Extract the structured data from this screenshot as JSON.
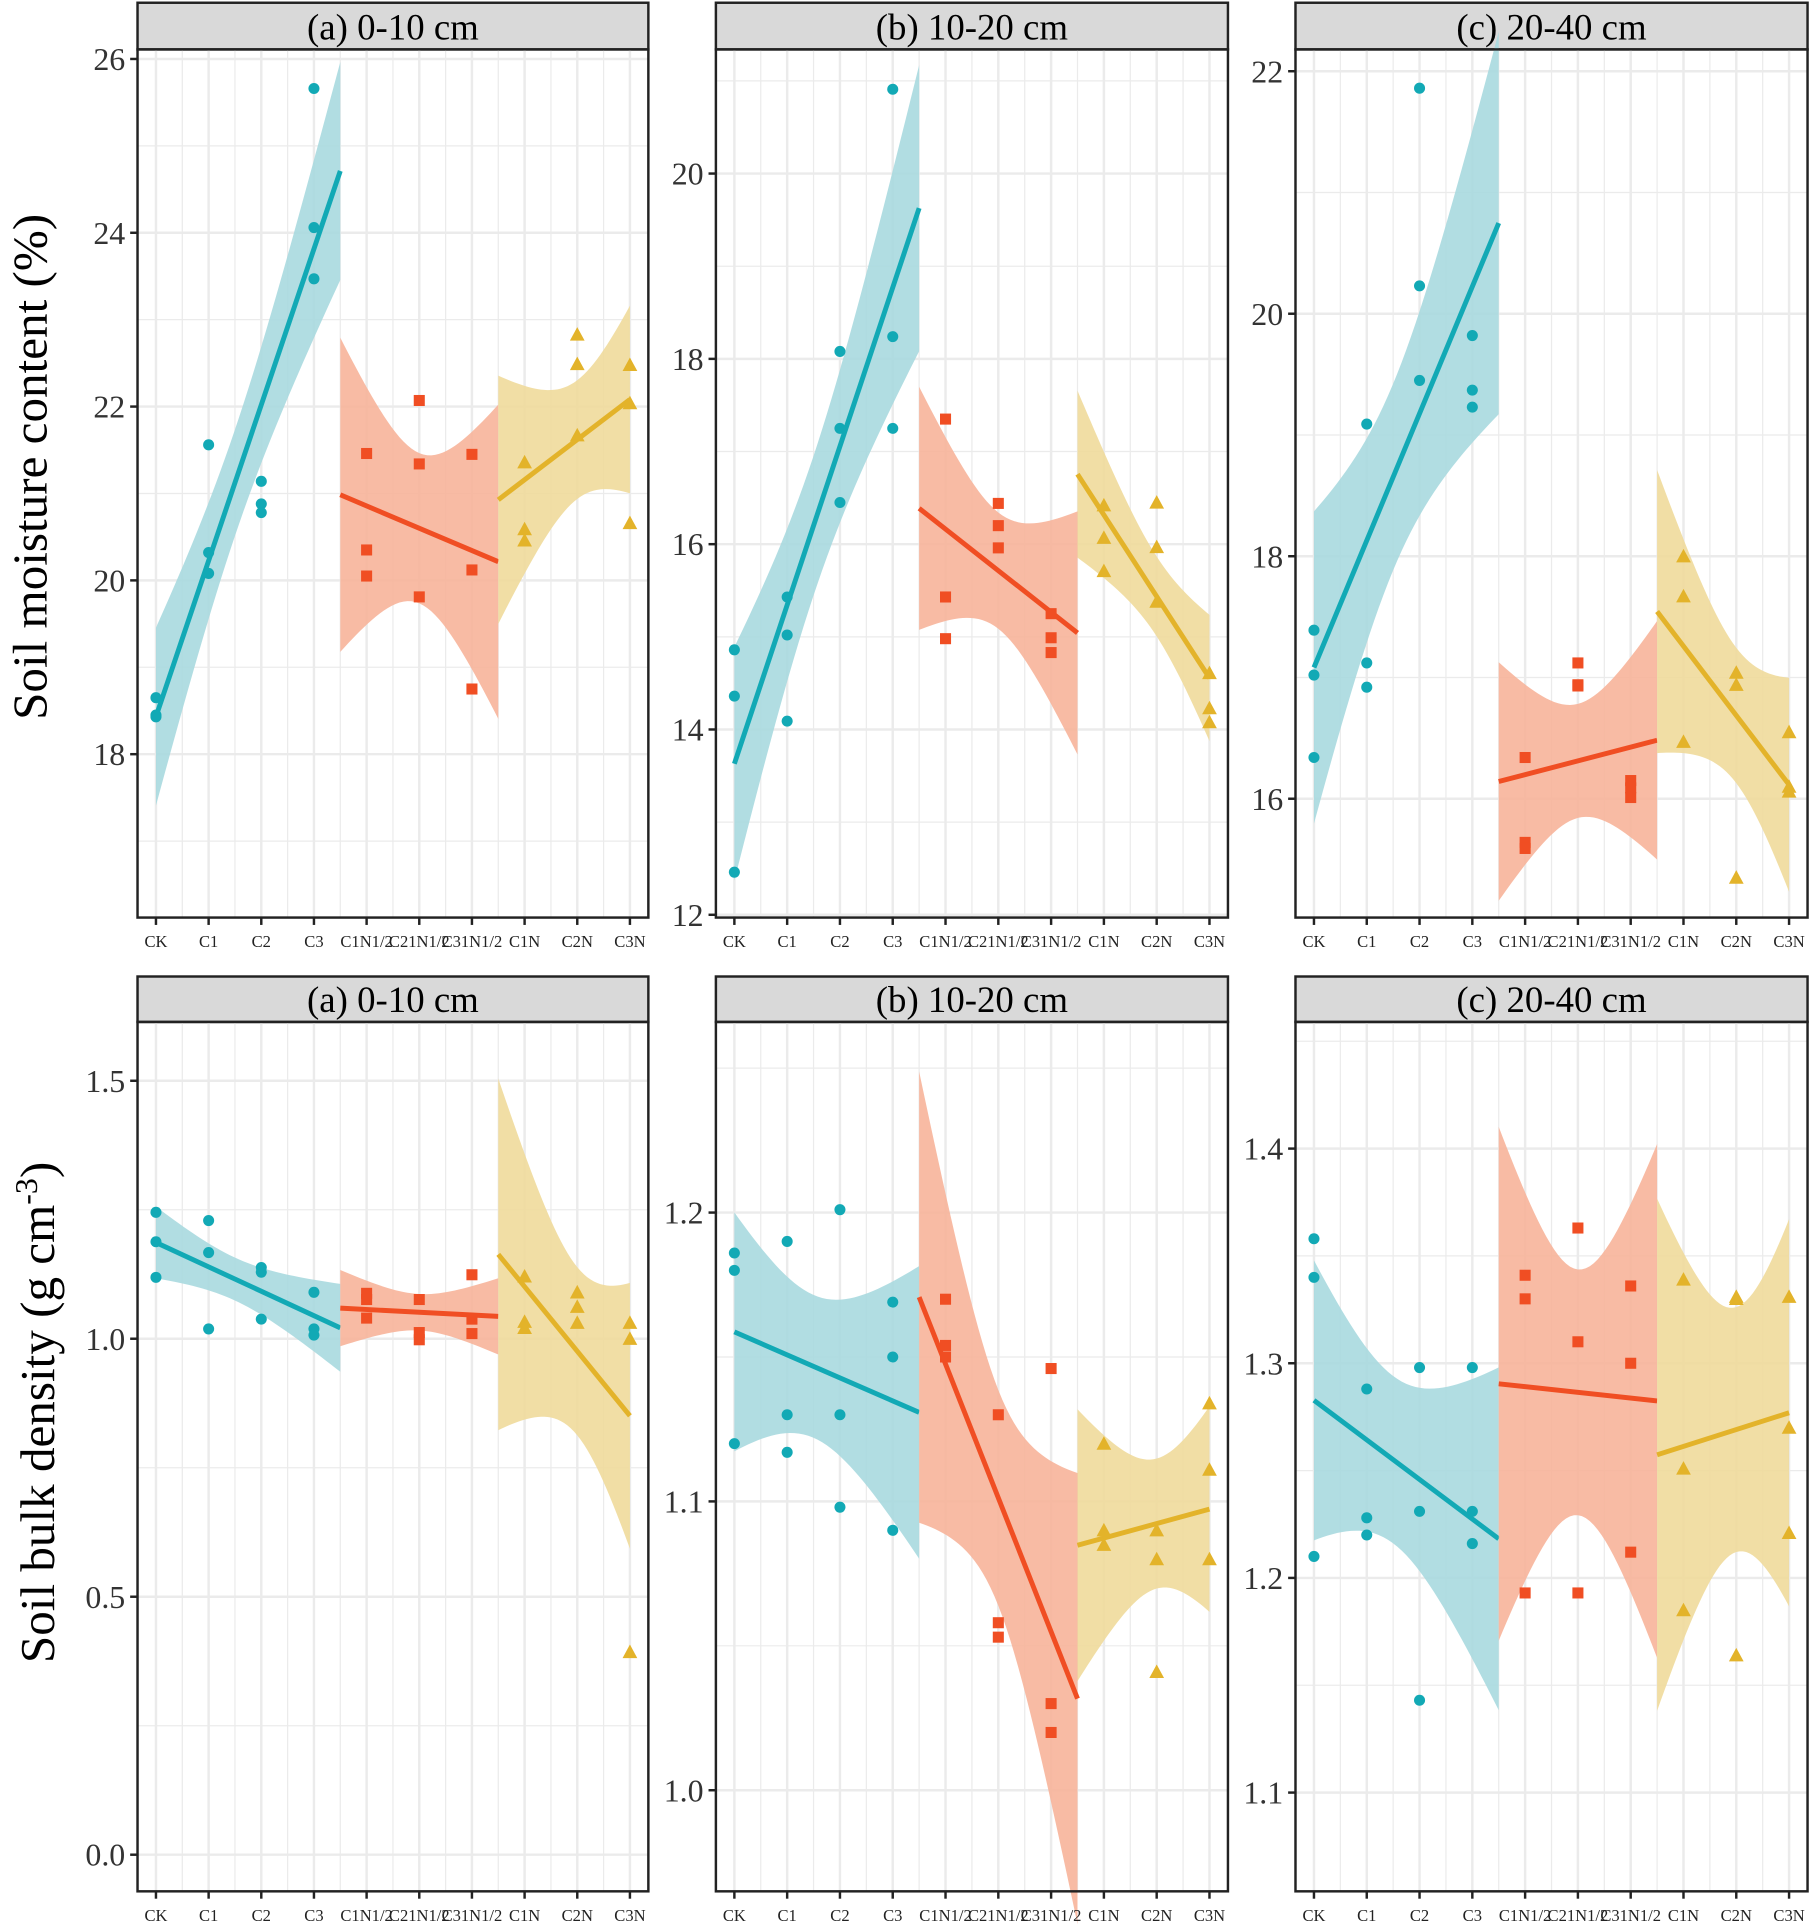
{
  "colors": {
    "teal": "#12a9b5",
    "teal_band": "#a9d9df",
    "orange": "#f04e23",
    "orange_band": "#f7b49a",
    "yellow": "#e3b32a",
    "yellow_band": "#f0da9b",
    "strip": "#d9d9d9",
    "grid": "#ebebeb"
  },
  "row_labels": {
    "moisture": "Soil moisture content (%)",
    "density_prefix": "Soil bulk density (g cm",
    "density_exp": "-3",
    "density_suffix": ")"
  },
  "categories": [
    "CK",
    "C1",
    "C2",
    "C3",
    "C1N1/2",
    "C21N1/2",
    "C31N1/2",
    "C1N",
    "C2N",
    "C3N"
  ],
  "chart_data": [
    {
      "type": "scatter",
      "title": "(a) 0-10 cm",
      "ylabel": "Soil moisture content (%)",
      "ylim": [
        16.12,
        26.11
      ],
      "yticks": [
        "18",
        "20",
        "22",
        "24",
        "26"
      ],
      "grid": true,
      "fit": "linear with 95% CI per group",
      "groups": [
        {
          "categories": [
            "CK",
            "C1",
            "C2",
            "C3"
          ],
          "marker": "circle",
          "values": [
            [
              18.65,
              18.45,
              18.43
            ],
            [
              21.56,
              20.32,
              20.08
            ],
            [
              21.14,
              20.88,
              20.78
            ],
            [
              25.66,
              24.06,
              23.47
            ]
          ]
        },
        {
          "categories": [
            "C1N1/2",
            "C21N1/2",
            "C31N1/2"
          ],
          "marker": "square",
          "values": [
            [
              21.46,
              20.35,
              20.05
            ],
            [
              22.07,
              21.34,
              19.81
            ],
            [
              21.45,
              20.12,
              18.75
            ]
          ]
        },
        {
          "categories": [
            "C1N",
            "C2N",
            "C3N"
          ],
          "marker": "triangle",
          "values": [
            [
              21.36,
              20.59,
              20.46
            ],
            [
              22.83,
              22.49,
              21.67
            ],
            [
              22.48,
              22.04,
              20.66
            ]
          ]
        }
      ]
    },
    {
      "type": "scatter",
      "title": "(b) 10-20 cm",
      "ylim": [
        11.97,
        21.34
      ],
      "yticks": [
        "12",
        "14",
        "16",
        "18",
        "20"
      ],
      "grid": true,
      "groups": [
        {
          "categories": [
            "CK",
            "C1",
            "C2",
            "C3"
          ],
          "marker": "circle",
          "values": [
            [
              14.86,
              14.36,
              12.46
            ],
            [
              15.43,
              15.02,
              14.09
            ],
            [
              18.08,
              17.25,
              16.45
            ],
            [
              20.91,
              18.24,
              17.25
            ]
          ]
        },
        {
          "categories": [
            "C1N1/2",
            "C21N1/2",
            "C31N1/2"
          ],
          "marker": "square",
          "values": [
            [
              17.35,
              15.43,
              14.98
            ],
            [
              16.44,
              16.2,
              15.96
            ],
            [
              15.25,
              14.99,
              14.83
            ]
          ]
        },
        {
          "categories": [
            "C1N",
            "C2N",
            "C3N"
          ],
          "marker": "triangle",
          "values": [
            [
              16.42,
              16.07,
              15.71
            ],
            [
              16.45,
              15.97,
              15.38
            ],
            [
              14.61,
              14.23,
              14.08
            ]
          ]
        }
      ]
    },
    {
      "type": "scatter",
      "title": "(c) 20-40 cm",
      "ylim": [
        15.02,
        22.18
      ],
      "yticks": [
        "16",
        "18",
        "20",
        "22"
      ],
      "grid": true,
      "groups": [
        {
          "categories": [
            "CK",
            "C1",
            "C2",
            "C3"
          ],
          "marker": "circle",
          "values": [
            [
              17.39,
              17.02,
              16.34
            ],
            [
              19.09,
              17.12,
              16.92
            ],
            [
              21.86,
              20.23,
              19.45
            ],
            [
              19.82,
              19.37,
              19.23
            ]
          ]
        },
        {
          "categories": [
            "C1N1/2",
            "C21N1/2",
            "C31N1/2"
          ],
          "marker": "square",
          "values": [
            [
              16.34,
              15.64,
              15.59
            ],
            [
              17.12,
              16.94,
              16.93
            ],
            [
              16.15,
              16.09,
              16.01
            ]
          ]
        },
        {
          "categories": [
            "C1N",
            "C2N",
            "C3N"
          ],
          "marker": "triangle",
          "values": [
            [
              18.0,
              17.67,
              16.47
            ],
            [
              17.04,
              16.94,
              15.35
            ],
            [
              16.55,
              16.06,
              16.1
            ]
          ]
        }
      ]
    },
    {
      "type": "scatter",
      "title": "(a) 0-10 cm",
      "ylabel": "Soil bulk density (g cm-3)",
      "ylim": [
        -0.071,
        1.614
      ],
      "yticks": [
        "0.0",
        "0.5",
        "1.0",
        "1.5"
      ],
      "grid": true,
      "groups": [
        {
          "categories": [
            "CK",
            "C1",
            "C2",
            "C3"
          ],
          "marker": "circle",
          "values": [
            [
              1.245,
              1.188,
              1.119
            ],
            [
              1.229,
              1.167,
              1.019
            ],
            [
              1.138,
              1.129,
              1.038
            ],
            [
              1.09,
              1.019,
              1.007
            ]
          ]
        },
        {
          "categories": [
            "C1N1/2",
            "C21N1/2",
            "C31N1/2"
          ],
          "marker": "square",
          "values": [
            [
              1.088,
              1.076,
              1.04
            ],
            [
              1.076,
              1.012,
              0.998
            ],
            [
              1.124,
              1.038,
              1.01
            ]
          ]
        },
        {
          "categories": [
            "C1N",
            "C2N",
            "C3N"
          ],
          "marker": "triangle",
          "values": [
            [
              1.121,
              1.033,
              1.021
            ],
            [
              1.09,
              1.062,
              1.031
            ],
            [
              1.031,
              1.0,
              0.393
            ]
          ]
        }
      ]
    },
    {
      "type": "scatter",
      "title": "(b) 10-20 cm",
      "ylim": [
        0.965,
        1.266
      ],
      "yticks": [
        "1.0",
        "1.1",
        "1.2"
      ],
      "grid": true,
      "groups": [
        {
          "categories": [
            "CK",
            "C1",
            "C2",
            "C3"
          ],
          "marker": "circle",
          "values": [
            [
              1.186,
              1.18,
              1.12
            ],
            [
              1.19,
              1.13,
              1.117
            ],
            [
              1.201,
              1.13,
              1.098
            ],
            [
              1.169,
              1.15,
              1.09
            ]
          ]
        },
        {
          "categories": [
            "C1N1/2",
            "C21N1/2",
            "C31N1/2"
          ],
          "marker": "square",
          "values": [
            [
              1.17,
              1.154,
              1.15
            ],
            [
              1.13,
              1.058,
              1.053
            ],
            [
              1.146,
              1.03,
              1.02
            ]
          ]
        },
        {
          "categories": [
            "C1N",
            "C2N",
            "C3N"
          ],
          "marker": "triangle",
          "values": [
            [
              1.12,
              1.09,
              1.085
            ],
            [
              1.09,
              1.08,
              1.041
            ],
            [
              1.134,
              1.111,
              1.08
            ]
          ]
        }
      ]
    },
    {
      "type": "scatter",
      "title": "(c) 20-40 cm",
      "ylim": [
        1.054,
        1.459
      ],
      "yticks": [
        "1.1",
        "1.2",
        "1.3",
        "1.4"
      ],
      "grid": true,
      "groups": [
        {
          "categories": [
            "CK",
            "C1",
            "C2",
            "C3"
          ],
          "marker": "circle",
          "values": [
            [
              1.358,
              1.34,
              1.21
            ],
            [
              1.288,
              1.228,
              1.22
            ],
            [
              1.298,
              1.231,
              1.143
            ],
            [
              1.298,
              1.231,
              1.216
            ]
          ]
        },
        {
          "categories": [
            "C1N1/2",
            "C21N1/2",
            "C31N1/2"
          ],
          "marker": "square",
          "values": [
            [
              1.341,
              1.33,
              1.193
            ],
            [
              1.363,
              1.31,
              1.193
            ],
            [
              1.336,
              1.3,
              1.212
            ]
          ]
        },
        {
          "categories": [
            "C1N",
            "C2N",
            "C3N"
          ],
          "marker": "triangle",
          "values": [
            [
              1.339,
              1.251,
              1.185
            ],
            [
              1.331,
              1.33,
              1.164
            ],
            [
              1.331,
              1.27,
              1.221
            ]
          ]
        }
      ]
    }
  ]
}
